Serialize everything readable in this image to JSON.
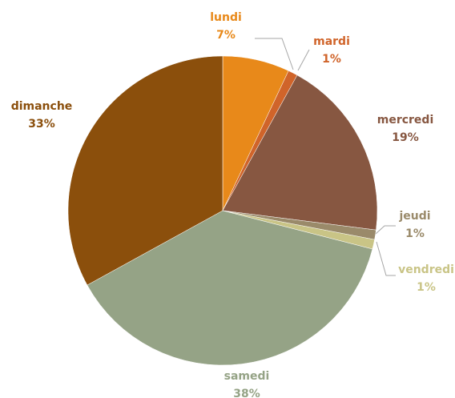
{
  "chart_data": {
    "type": "pie",
    "categories": [
      "lundi",
      "mardi",
      "mercredi",
      "jeudi",
      "vendredi",
      "samedi",
      "dimanche"
    ],
    "values": [
      7,
      1,
      19,
      1,
      1,
      38,
      33
    ],
    "value_labels": [
      "7%",
      "1%",
      "19%",
      "1%",
      "1%",
      "38%",
      "33%"
    ],
    "colors": [
      "#e8891a",
      "#d0642a",
      "#875741",
      "#9a8a6a",
      "#c9c486",
      "#95a386",
      "#8b4f0c"
    ]
  }
}
